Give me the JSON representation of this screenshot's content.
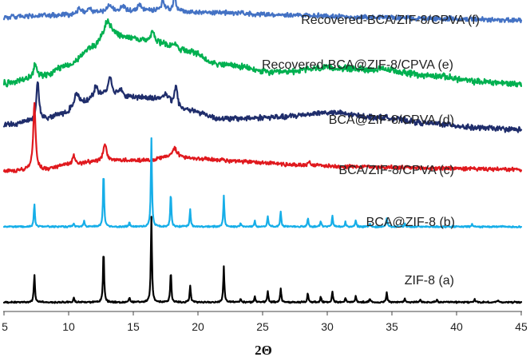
{
  "chart_data": {
    "type": "line",
    "title": "",
    "xlabel": "2Θ",
    "ylabel": "",
    "xlim": [
      5,
      45
    ],
    "xticks": [
      "5",
      "10",
      "15",
      "20",
      "25",
      "30",
      "35",
      "40",
      "45"
    ],
    "grid": false,
    "legend": "none",
    "series": [
      {
        "name": "Recovered-BCA/ZIF-8/CPVA (f)",
        "color": "#4472C4",
        "baseline": 0.955,
        "noise": 0.006,
        "background": [
          [
            5,
            0.955
          ],
          [
            9,
            0.96
          ],
          [
            13,
            0.972
          ],
          [
            17,
            0.975
          ],
          [
            21,
            0.97
          ],
          [
            27,
            0.962
          ],
          [
            33,
            0.955
          ],
          [
            39,
            0.949
          ],
          [
            45,
            0.945
          ]
        ],
        "peaks": [
          [
            10.8,
            0.018,
            0.35
          ],
          [
            11.6,
            0.015,
            0.3
          ],
          [
            13.2,
            0.025,
            0.4
          ],
          [
            14.2,
            0.018,
            0.4
          ],
          [
            15.5,
            0.02,
            0.4
          ],
          [
            17.3,
            0.032,
            0.35
          ],
          [
            18.2,
            0.052,
            0.22
          ]
        ]
      },
      {
        "name": "Recovered-BCA@ZIF-8/CPVA (e)",
        "color": "#00B050",
        "baseline": 0.74,
        "noise": 0.008,
        "background": [
          [
            5,
            0.74
          ],
          [
            8,
            0.765
          ],
          [
            10,
            0.8
          ],
          [
            12,
            0.86
          ],
          [
            13,
            0.9
          ],
          [
            15,
            0.885
          ],
          [
            17,
            0.87
          ],
          [
            19,
            0.845
          ],
          [
            22,
            0.8
          ],
          [
            26,
            0.775
          ],
          [
            30,
            0.79
          ],
          [
            34,
            0.785
          ],
          [
            38,
            0.765
          ],
          [
            42,
            0.745
          ],
          [
            45,
            0.738
          ]
        ],
        "peaks": [
          [
            7.4,
            0.045,
            0.25
          ],
          [
            13.0,
            0.04,
            0.6
          ],
          [
            16.5,
            0.035,
            0.35
          ],
          [
            18.2,
            0.015,
            0.4
          ]
        ]
      },
      {
        "name": "BCA@ZIF-8/CPVA (d)",
        "color": "#1F2D6B",
        "baseline": 0.605,
        "noise": 0.007,
        "background": [
          [
            5,
            0.605
          ],
          [
            8,
            0.625
          ],
          [
            9.5,
            0.64
          ],
          [
            11,
            0.68
          ],
          [
            13,
            0.7
          ],
          [
            15,
            0.695
          ],
          [
            17,
            0.69
          ],
          [
            19,
            0.655
          ],
          [
            22,
            0.625
          ],
          [
            26,
            0.63
          ],
          [
            30,
            0.645
          ],
          [
            34,
            0.63
          ],
          [
            38,
            0.61
          ],
          [
            42,
            0.595
          ],
          [
            45,
            0.59
          ]
        ],
        "peaks": [
          [
            7.6,
            0.125,
            0.22
          ],
          [
            10.6,
            0.035,
            0.35
          ],
          [
            12.1,
            0.035,
            0.4
          ],
          [
            13.2,
            0.06,
            0.35
          ],
          [
            14.0,
            0.025,
            0.3
          ],
          [
            17.5,
            0.02,
            0.4
          ],
          [
            18.3,
            0.07,
            0.25
          ]
        ]
      },
      {
        "name": "BCA/ZIF-8/CPVA (c)",
        "color": "#E0191E",
        "baseline": 0.455,
        "noise": 0.005,
        "background": [
          [
            5,
            0.455
          ],
          [
            8,
            0.46
          ],
          [
            10,
            0.475
          ],
          [
            12,
            0.485
          ],
          [
            14,
            0.49
          ],
          [
            16,
            0.49
          ],
          [
            18,
            0.5
          ],
          [
            20,
            0.495
          ],
          [
            24,
            0.485
          ],
          [
            28,
            0.475
          ],
          [
            32,
            0.47
          ],
          [
            38,
            0.465
          ],
          [
            45,
            0.46
          ]
        ],
        "peaks": [
          [
            7.35,
            0.215,
            0.22
          ],
          [
            10.4,
            0.028,
            0.3
          ],
          [
            12.8,
            0.055,
            0.32
          ],
          [
            18.2,
            0.03,
            0.5
          ],
          [
            28.6,
            0.012,
            0.2
          ]
        ]
      },
      {
        "name": "BCA@ZIF-8 (b)",
        "color": "#16AEE8",
        "baseline": 0.275,
        "noise": 0.002,
        "background": [
          [
            5,
            0.275
          ],
          [
            45,
            0.275
          ]
        ],
        "peaks": [
          [
            7.35,
            0.075,
            0.1
          ],
          [
            10.4,
            0.01,
            0.1
          ],
          [
            11.2,
            0.018,
            0.1
          ],
          [
            12.7,
            0.18,
            0.1
          ],
          [
            14.7,
            0.015,
            0.1
          ],
          [
            16.4,
            0.285,
            0.1
          ],
          [
            17.9,
            0.11,
            0.1
          ],
          [
            19.4,
            0.055,
            0.1
          ],
          [
            22.0,
            0.1,
            0.1
          ],
          [
            23.3,
            0.012,
            0.1
          ],
          [
            24.4,
            0.02,
            0.1
          ],
          [
            25.4,
            0.035,
            0.1
          ],
          [
            26.4,
            0.05,
            0.1
          ],
          [
            28.5,
            0.028,
            0.1
          ],
          [
            29.5,
            0.018,
            0.1
          ],
          [
            30.4,
            0.035,
            0.1
          ],
          [
            31.4,
            0.015,
            0.1
          ],
          [
            32.2,
            0.02,
            0.1
          ],
          [
            33.3,
            0.01,
            0.1
          ],
          [
            34.6,
            0.03,
            0.1
          ],
          [
            36.0,
            0.01,
            0.1
          ],
          [
            41.2,
            0.008,
            0.1
          ]
        ]
      },
      {
        "name": "ZIF-8 (a)",
        "color": "#000000",
        "baseline": 0.03,
        "noise": 0.002,
        "background": [
          [
            5,
            0.03
          ],
          [
            45,
            0.03
          ]
        ],
        "peaks": [
          [
            7.35,
            0.09,
            0.1
          ],
          [
            10.4,
            0.015,
            0.1
          ],
          [
            12.7,
            0.17,
            0.1
          ],
          [
            14.7,
            0.015,
            0.1
          ],
          [
            16.4,
            0.275,
            0.1
          ],
          [
            17.9,
            0.1,
            0.1
          ],
          [
            19.4,
            0.055,
            0.1
          ],
          [
            22.0,
            0.115,
            0.1
          ],
          [
            23.3,
            0.012,
            0.1
          ],
          [
            24.4,
            0.02,
            0.1
          ],
          [
            25.4,
            0.035,
            0.1
          ],
          [
            26.4,
            0.045,
            0.1
          ],
          [
            28.5,
            0.03,
            0.1
          ],
          [
            29.5,
            0.018,
            0.1
          ],
          [
            30.4,
            0.035,
            0.1
          ],
          [
            31.4,
            0.015,
            0.1
          ],
          [
            32.2,
            0.02,
            0.1
          ],
          [
            33.3,
            0.012,
            0.1
          ],
          [
            34.6,
            0.032,
            0.1
          ],
          [
            36.0,
            0.012,
            0.1
          ],
          [
            37.2,
            0.008,
            0.1
          ],
          [
            38.5,
            0.008,
            0.1
          ],
          [
            41.4,
            0.01,
            0.1
          ],
          [
            43.2,
            0.006,
            0.1
          ]
        ]
      }
    ]
  }
}
